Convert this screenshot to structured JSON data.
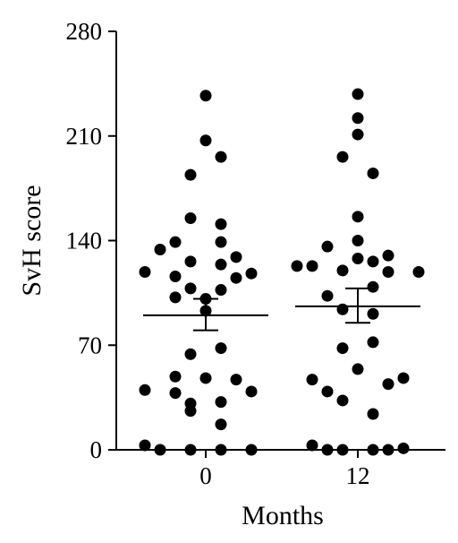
{
  "chart_data": {
    "type": "scatter",
    "title": "",
    "xlabel": "Months",
    "ylabel": "SvH score",
    "ylim": [
      0,
      280
    ],
    "yticks": [
      "0",
      "70",
      "140",
      "210",
      "280"
    ],
    "categories": [
      "0",
      "12"
    ],
    "groups": [
      {
        "category": "0",
        "mean": 90,
        "sem_low": 80,
        "sem_high": 101,
        "points": [
          {
            "y": 237,
            "side": 0
          },
          {
            "y": 207,
            "side": 0
          },
          {
            "y": 196,
            "side": 1
          },
          {
            "y": 184,
            "side": -1
          },
          {
            "y": 155,
            "side": -1
          },
          {
            "y": 151,
            "side": 1
          },
          {
            "y": 139,
            "side": -2
          },
          {
            "y": 139,
            "side": 1
          },
          {
            "y": 134,
            "side": -3
          },
          {
            "y": 129,
            "side": 2
          },
          {
            "y": 126,
            "side": -1
          },
          {
            "y": 124,
            "side": 1
          },
          {
            "y": 119,
            "side": -4
          },
          {
            "y": 118,
            "side": 3
          },
          {
            "y": 116,
            "side": -2
          },
          {
            "y": 115,
            "side": 2
          },
          {
            "y": 108,
            "side": -1
          },
          {
            "y": 107,
            "side": 1
          },
          {
            "y": 102,
            "side": -2
          },
          {
            "y": 101,
            "side": 0
          },
          {
            "y": 93,
            "side": 0
          },
          {
            "y": 68,
            "side": 1
          },
          {
            "y": 64,
            "side": -1
          },
          {
            "y": 49,
            "side": -2
          },
          {
            "y": 48,
            "side": 0
          },
          {
            "y": 47,
            "side": 2
          },
          {
            "y": 40,
            "side": -4
          },
          {
            "y": 39,
            "side": 3
          },
          {
            "y": 38,
            "side": -2
          },
          {
            "y": 32,
            "side": 1
          },
          {
            "y": 31,
            "side": -1
          },
          {
            "y": 26,
            "side": -1
          },
          {
            "y": 17,
            "side": 1
          },
          {
            "y": 3,
            "side": -4
          },
          {
            "y": 0,
            "side": -3
          },
          {
            "y": 0,
            "side": -1
          },
          {
            "y": 0,
            "side": 1
          },
          {
            "y": 0,
            "side": 3
          }
        ]
      },
      {
        "category": "12",
        "mean": 96,
        "sem_low": 85,
        "sem_high": 108,
        "points": [
          {
            "y": 238,
            "side": 0
          },
          {
            "y": 222,
            "side": 0
          },
          {
            "y": 211,
            "side": 0
          },
          {
            "y": 196,
            "side": -1
          },
          {
            "y": 185,
            "side": 1
          },
          {
            "y": 156,
            "side": 0
          },
          {
            "y": 140,
            "side": 0
          },
          {
            "y": 136,
            "side": -2
          },
          {
            "y": 130,
            "side": 2
          },
          {
            "y": 128,
            "side": 0
          },
          {
            "y": 126,
            "side": 1
          },
          {
            "y": 123,
            "side": -4
          },
          {
            "y": 123,
            "side": -3
          },
          {
            "y": 120,
            "side": -1
          },
          {
            "y": 119,
            "side": 4
          },
          {
            "y": 119,
            "side": 2
          },
          {
            "y": 109,
            "side": 1
          },
          {
            "y": 103,
            "side": -2
          },
          {
            "y": 94,
            "side": -1
          },
          {
            "y": 91,
            "side": 1
          },
          {
            "y": 72,
            "side": 1
          },
          {
            "y": 68,
            "side": -1
          },
          {
            "y": 54,
            "side": 0
          },
          {
            "y": 48,
            "side": 3
          },
          {
            "y": 47,
            "side": -3
          },
          {
            "y": 44,
            "side": 2
          },
          {
            "y": 39,
            "side": -2
          },
          {
            "y": 33,
            "side": -1
          },
          {
            "y": 24,
            "side": 1
          },
          {
            "y": 3,
            "side": -3
          },
          {
            "y": 0,
            "side": -2
          },
          {
            "y": 0,
            "side": -1
          },
          {
            "y": 0,
            "side": 1
          },
          {
            "y": 0,
            "side": 2
          },
          {
            "y": 1,
            "side": 3
          }
        ]
      }
    ]
  }
}
